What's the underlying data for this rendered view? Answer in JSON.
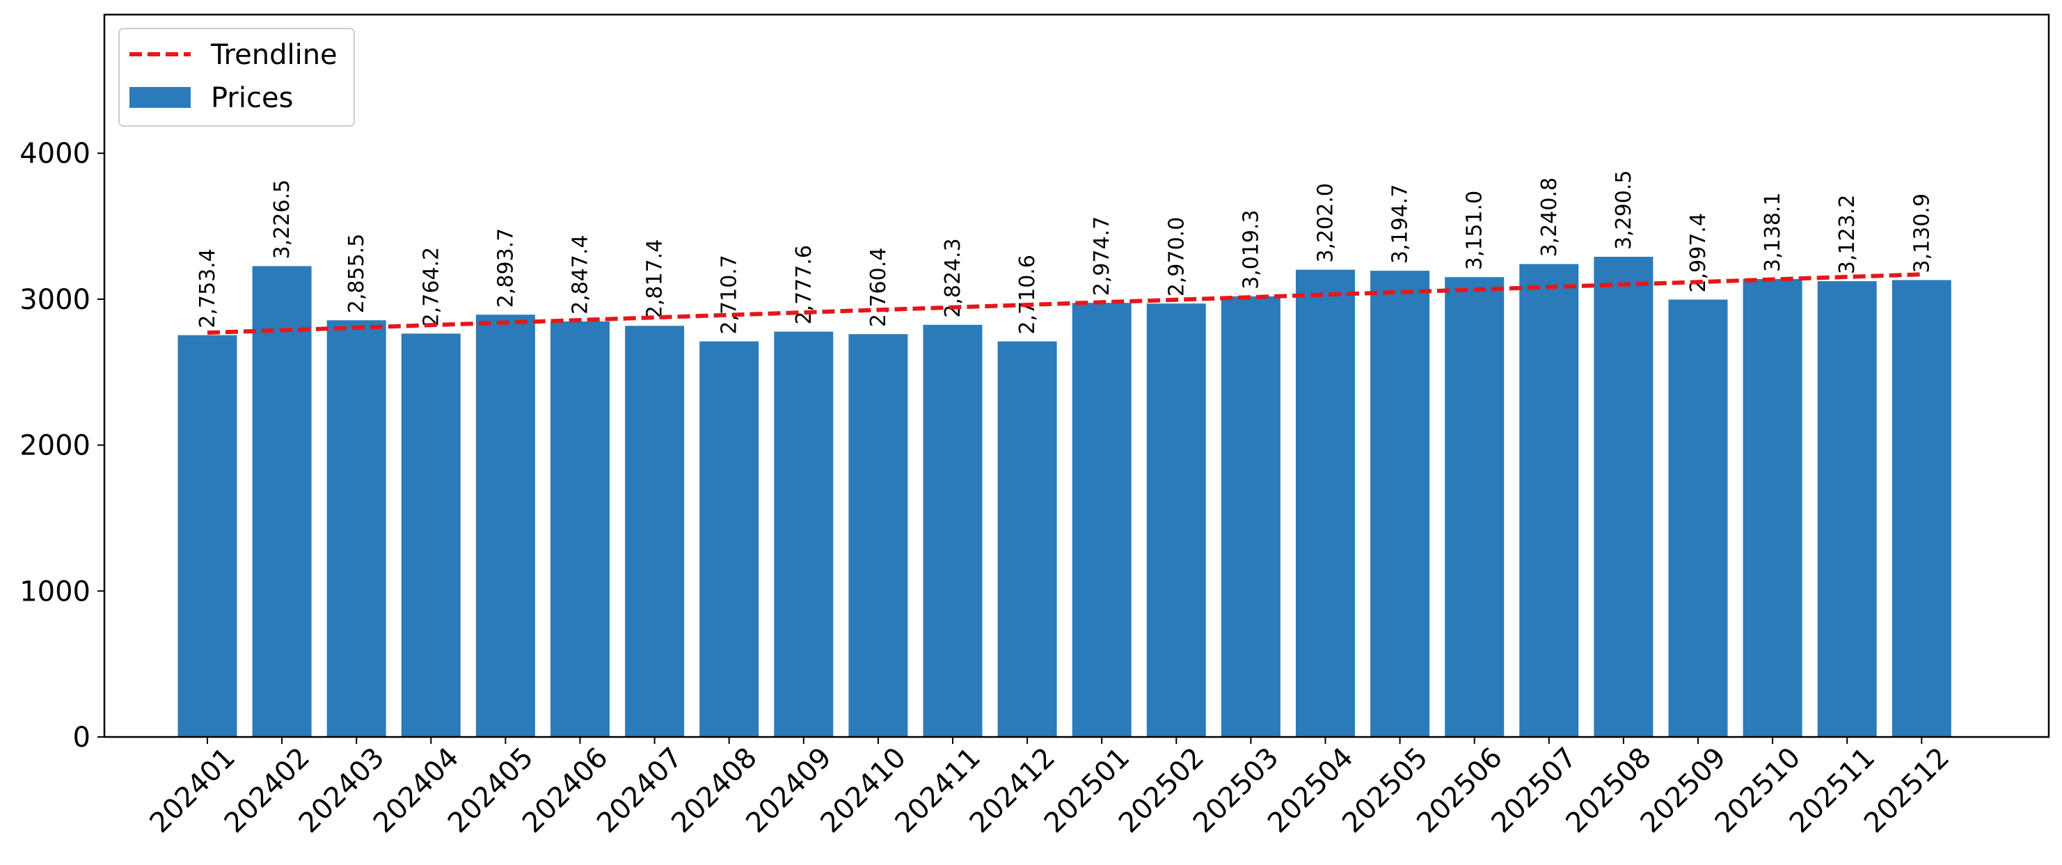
{
  "chart_data": {
    "type": "bar",
    "categories": [
      "202401",
      "202402",
      "202403",
      "202404",
      "202405",
      "202406",
      "202407",
      "202408",
      "202409",
      "202410",
      "202411",
      "202412",
      "202501",
      "202502",
      "202503",
      "202504",
      "202505",
      "202506",
      "202507",
      "202508",
      "202509",
      "202510",
      "202511",
      "202512"
    ],
    "series": [
      {
        "name": "Prices",
        "type": "bar",
        "color": "#2b7bba",
        "values": [
          2753.4,
          3226.5,
          2855.5,
          2764.2,
          2893.7,
          2847.4,
          2817.4,
          2710.7,
          2777.6,
          2760.4,
          2824.3,
          2710.6,
          2974.7,
          2970.0,
          3019.3,
          3202.0,
          3194.7,
          3151.0,
          3240.8,
          3290.5,
          2997.4,
          3138.1,
          3123.2,
          3130.9
        ]
      },
      {
        "name": "Trendline",
        "type": "line",
        "style": "dashed",
        "color": "#e3181b",
        "start": 2770,
        "end": 3170
      }
    ],
    "data_labels": [
      "2,753.4",
      "3,226.5",
      "2,855.5",
      "2,764.2",
      "2,893.7",
      "2,847.4",
      "2,817.4",
      "2,710.7",
      "2,777.6",
      "2,760.4",
      "2,824.3",
      "2,710.6",
      "2,974.7",
      "2,970.0",
      "3,019.3",
      "3,202.0",
      "3,194.7",
      "3,151.0",
      "3,240.8",
      "3,290.5",
      "2,997.4",
      "3,138.1",
      "3,123.2",
      "3,130.9"
    ],
    "y_ticks": [
      "0",
      "1000",
      "2000",
      "3000",
      "4000"
    ],
    "ylim": [
      0,
      4950
    ],
    "title": "",
    "xlabel": "",
    "ylabel": "",
    "grid": false,
    "legend": {
      "position": "top-left",
      "entries": [
        "Trendline",
        "Prices"
      ]
    }
  }
}
